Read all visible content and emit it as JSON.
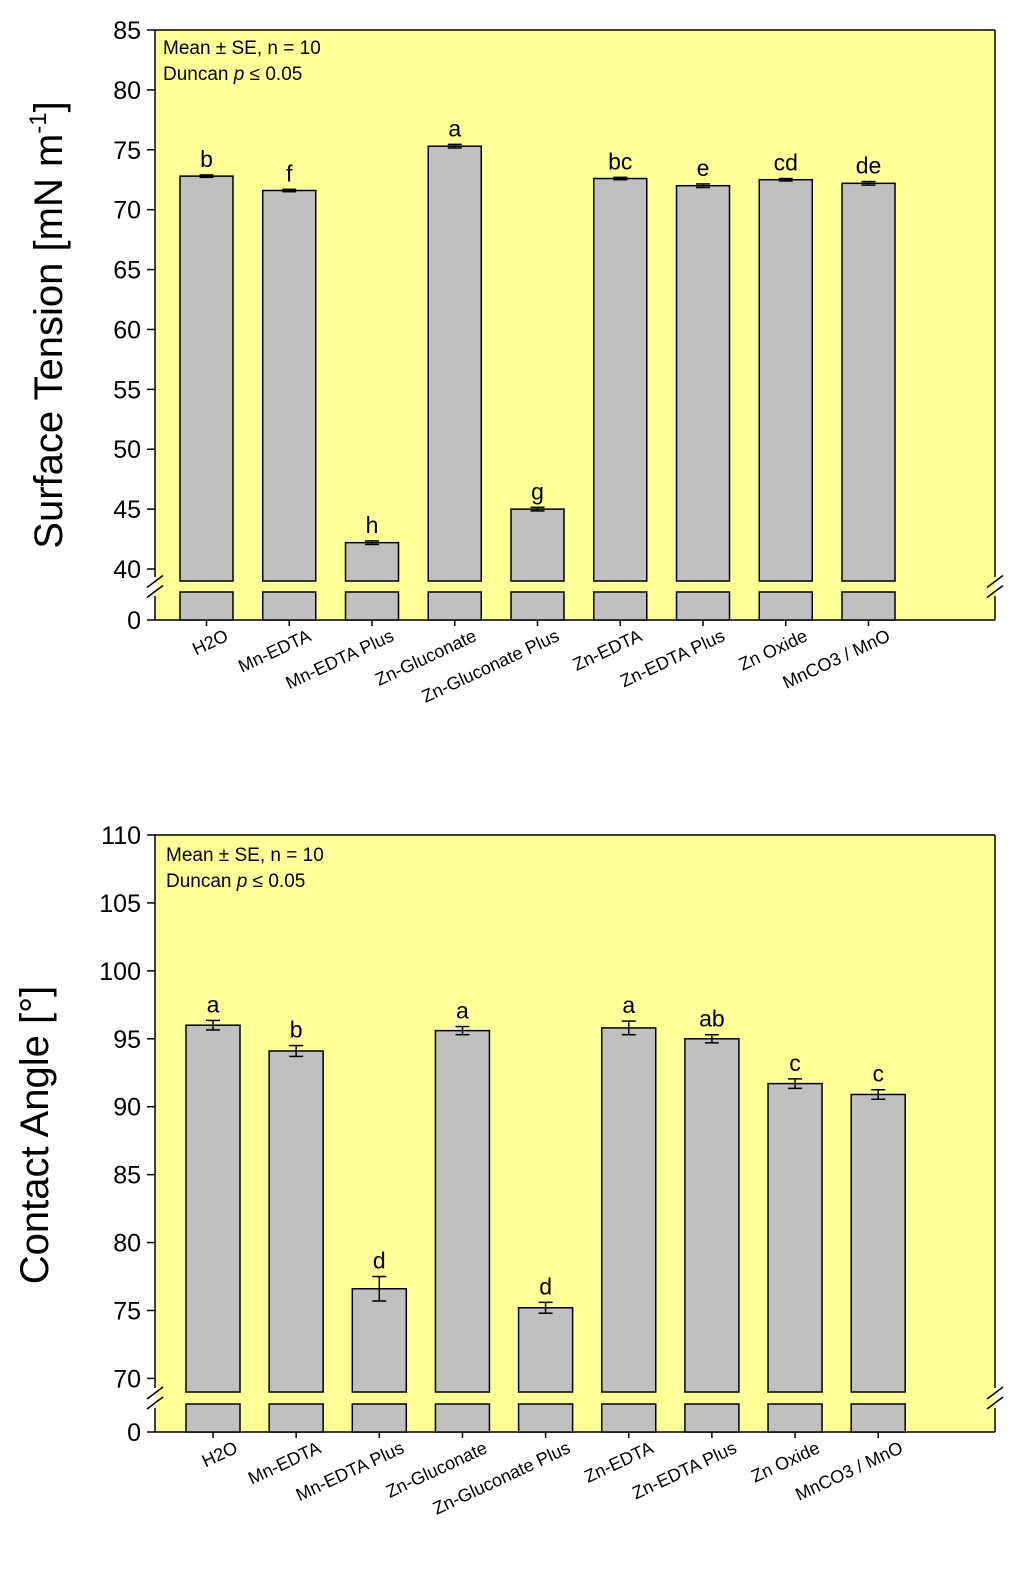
{
  "figure": {
    "colors": {
      "plot_background": "#ffff99",
      "bar_fill": "#c0c0c0",
      "bar_stroke": "#000000",
      "axis": "#000000"
    }
  },
  "chart_data": [
    {
      "type": "bar",
      "id": "surface-tension",
      "ylabel": "Surface Tension [mN m",
      "ylabel_superscript": "-1",
      "ylabel_suffix": "]",
      "annotation_line1": "Mean ± SE, n = 10",
      "annotation_line2_prefix": "Duncan ",
      "annotation_line2_p": "p",
      "annotation_line2_suffix": " ≤ 0.05",
      "categories": [
        "H2O",
        "Mn-EDTA",
        "Mn-EDTA Plus",
        "Zn-Gluconate",
        "Zn-Gluconate Plus",
        "Zn-EDTA",
        "Zn-EDTA Plus",
        "Zn Oxide",
        "MnCO3 / MnO"
      ],
      "values": [
        72.8,
        71.6,
        42.2,
        75.3,
        45.0,
        72.6,
        72.0,
        72.5,
        72.2
      ],
      "errors": [
        0.1,
        0.1,
        0.15,
        0.15,
        0.15,
        0.1,
        0.15,
        0.1,
        0.15
      ],
      "significance": [
        "b",
        "f",
        "h",
        "a",
        "g",
        "bc",
        "e",
        "cd",
        "de"
      ],
      "ylim": [
        39,
        85
      ],
      "axis_break": [
        0,
        39
      ],
      "yticks": [
        40,
        45,
        50,
        55,
        60,
        65,
        70,
        75,
        80,
        85
      ],
      "ytick_labels": [
        "40",
        "45",
        "50",
        "55",
        "60",
        "65",
        "70",
        "75",
        "80",
        "85"
      ],
      "bottom_tick_label": "0"
    },
    {
      "type": "bar",
      "id": "contact-angle",
      "ylabel": "Contact Angle [°]",
      "annotation_line1": "Mean ± SE, n = 10",
      "annotation_line2_prefix": "Duncan ",
      "annotation_line2_p": "p",
      "annotation_line2_suffix": " ≤ 0.05",
      "categories": [
        "H2O",
        "Mn-EDTA",
        "Mn-EDTA Plus",
        "Zn-Gluconate",
        "Zn-Gluconate Plus",
        "Zn-EDTA",
        "Zn-EDTA Plus",
        "Zn Oxide",
        "MnCO3 / MnO"
      ],
      "values": [
        96.0,
        94.1,
        76.6,
        95.6,
        75.2,
        95.8,
        95.0,
        91.7,
        90.9
      ],
      "errors": [
        0.35,
        0.4,
        0.9,
        0.3,
        0.4,
        0.5,
        0.3,
        0.35,
        0.35
      ],
      "significance": [
        "a",
        "b",
        "d",
        "a",
        "d",
        "a",
        "ab",
        "c",
        "c"
      ],
      "ylim": [
        69,
        110
      ],
      "axis_break": [
        0,
        69
      ],
      "yticks": [
        70,
        75,
        80,
        85,
        90,
        95,
        100,
        105,
        110
      ],
      "ytick_labels": [
        "70",
        "75",
        "80",
        "85",
        "90",
        "95",
        "100",
        "105",
        "110"
      ],
      "bottom_tick_label": "0"
    }
  ]
}
